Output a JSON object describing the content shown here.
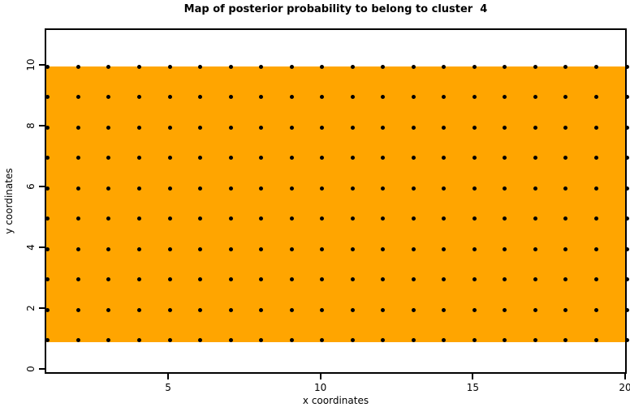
{
  "figure": {
    "title": "Map of posterior probability to belong to cluster  4",
    "x_axis_label": "x coordinates",
    "y_axis_label": "y coordinates"
  },
  "chart_data": {
    "type": "heatmap",
    "title": "Map of posterior probability to belong to cluster  4",
    "xlabel": "x coordinates",
    "ylabel": "y coordinates",
    "cluster_number": 4,
    "xlim": [
      0.95,
      20.05
    ],
    "ylim": [
      -0.15,
      11.35
    ],
    "x_ticks": [
      5,
      10,
      15,
      20
    ],
    "x_tick_labels": [
      "5",
      "10",
      "15",
      "20"
    ],
    "y_ticks": [
      0,
      2,
      4,
      6,
      8,
      10
    ],
    "y_tick_labels": [
      "0",
      "2",
      "4",
      "6",
      "8",
      "10"
    ],
    "grid_x": [
      1,
      2,
      3,
      4,
      5,
      6,
      7,
      8,
      9,
      10,
      11,
      12,
      13,
      14,
      15,
      16,
      17,
      18,
      19,
      20
    ],
    "grid_y": [
      1,
      2,
      3,
      4,
      5,
      6,
      7,
      8,
      9,
      10
    ],
    "fill_region": {
      "x_min": 1,
      "x_max": 20,
      "y_min": 1,
      "y_max": 10,
      "color": "#FFA500",
      "description": "uniform posterior probability colour over the whole grid"
    },
    "points": {
      "marker": "filled-circle",
      "color": "#000000",
      "at": "every integer (x, y) combination of grid_x by grid_y"
    },
    "legend": "none",
    "grid_lines": false,
    "background_color": "#FFFFFF",
    "box_color": "#000000"
  }
}
